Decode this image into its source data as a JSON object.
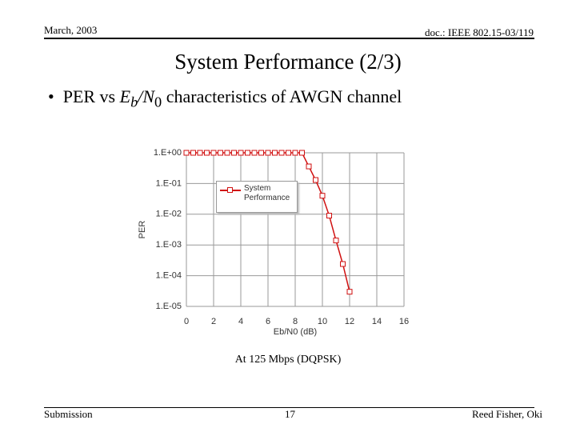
{
  "header": {
    "date": "March, 2003",
    "doc": "doc.: IEEE 802.15-03/119"
  },
  "title": "System Performance (2/3)",
  "bullet": [
    "PER vs ",
    "E",
    "b",
    "/N",
    "0",
    " characteristics of AWGN channel"
  ],
  "caption": "At 125 Mbps (DQPSK)",
  "footer": {
    "left": "Submission",
    "page": "17",
    "right": "Reed Fisher, Oki"
  },
  "chart_data": {
    "type": "line",
    "xlabel": "Eb/N0 (dB)",
    "ylabel": "PER",
    "log_y": true,
    "grid": true,
    "xlim": [
      0,
      16
    ],
    "xticks": [
      0,
      2,
      4,
      6,
      8,
      10,
      12,
      14,
      16
    ],
    "ylim": [
      1e-05,
      1
    ],
    "yticks": [
      {
        "value": 1,
        "label": "1.E+00"
      },
      {
        "value": 0.1,
        "label": "1.E-01"
      },
      {
        "value": 0.01,
        "label": "1.E-02"
      },
      {
        "value": 0.001,
        "label": "1.E-03"
      },
      {
        "value": 0.0001,
        "label": "1.E-04"
      },
      {
        "value": 1e-05,
        "label": "1.E-05"
      }
    ],
    "series": [
      {
        "name": "System Performance",
        "color": "#d01010",
        "x": [
          0,
          0.5,
          1,
          1.5,
          2,
          2.5,
          3,
          3.5,
          4,
          4.5,
          5,
          5.5,
          6,
          6.5,
          7,
          7.5,
          8,
          8.5,
          9,
          9.5,
          10,
          10.5,
          11,
          11.5,
          12
        ],
        "values": [
          1,
          1,
          1,
          1,
          1,
          1,
          1,
          1,
          1,
          1,
          1,
          1,
          1,
          1,
          1,
          1,
          1,
          1,
          0.36,
          0.13,
          0.04,
          0.009,
          0.0014,
          0.00024,
          3e-05
        ]
      }
    ]
  }
}
